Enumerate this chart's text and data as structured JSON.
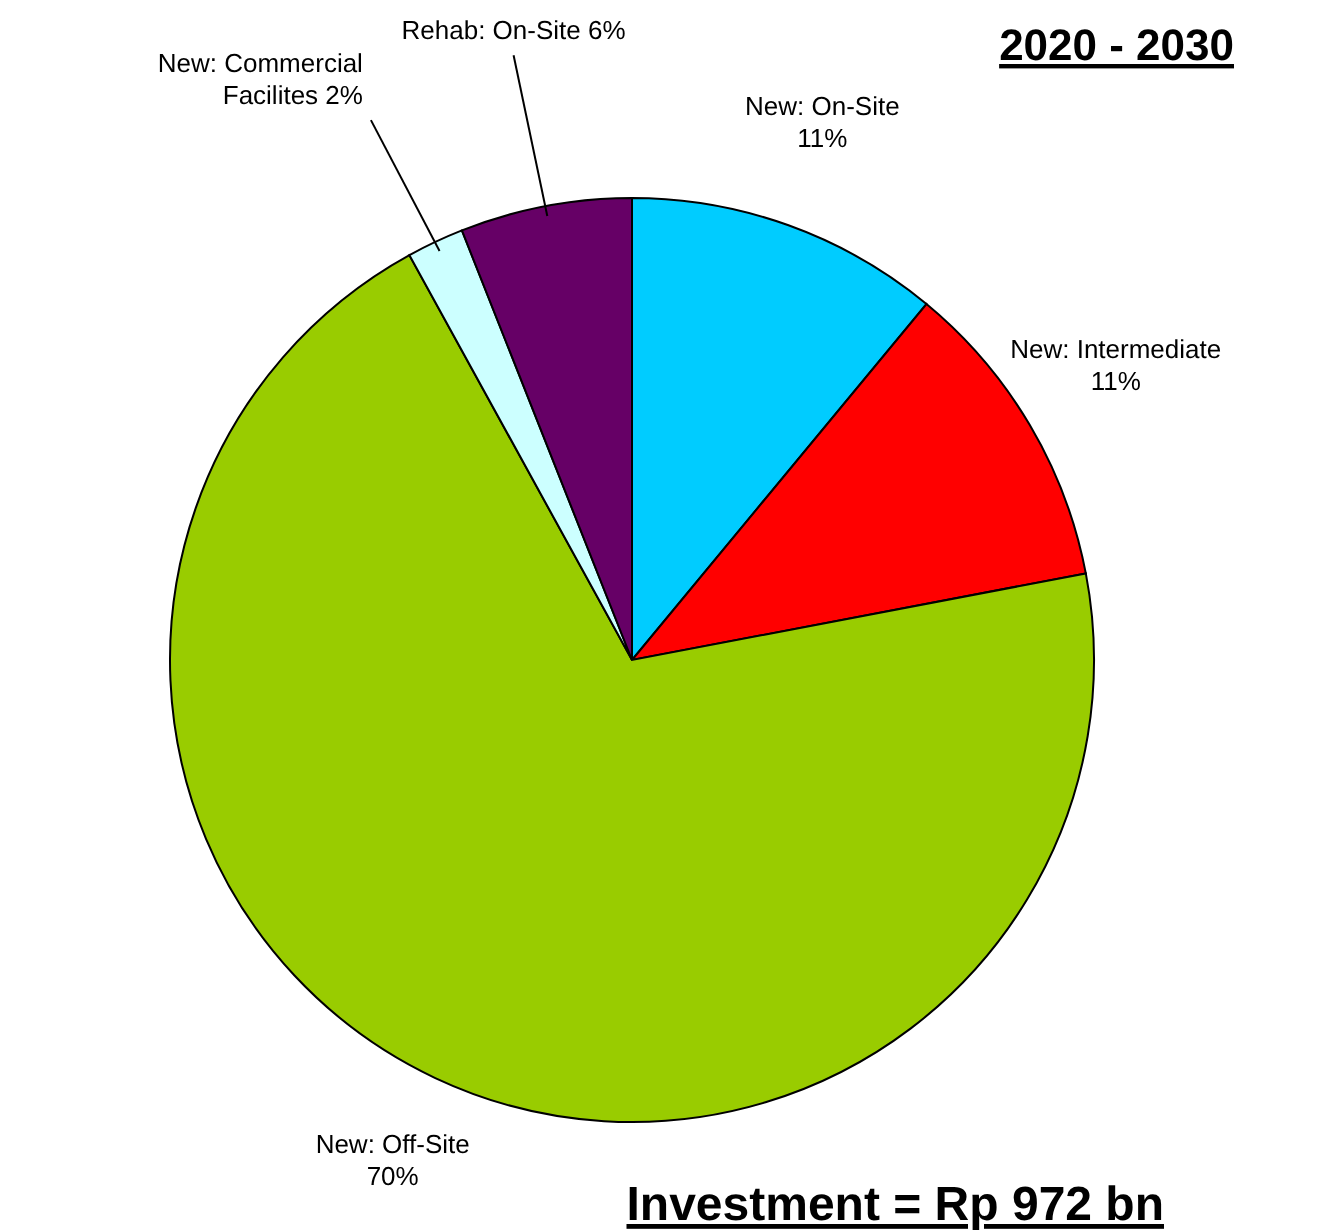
{
  "chart_data": {
    "type": "pie",
    "title": "2020 - 2030",
    "categories": [
      "New: On-Site",
      "New: Intermediate",
      "New: Off-Site",
      "New: Commercial Facilites",
      "Rehab: On-Site"
    ],
    "values": [
      11,
      11,
      70,
      2,
      6
    ],
    "value_labels": [
      "11%",
      "11%",
      "70%",
      "2%",
      "6%"
    ],
    "colors": [
      "#00ccff",
      "#ff0000",
      "#99cc00",
      "#ccffff",
      "#660066"
    ],
    "annotations": [
      "Investment = Rp 972 bn"
    ]
  }
}
